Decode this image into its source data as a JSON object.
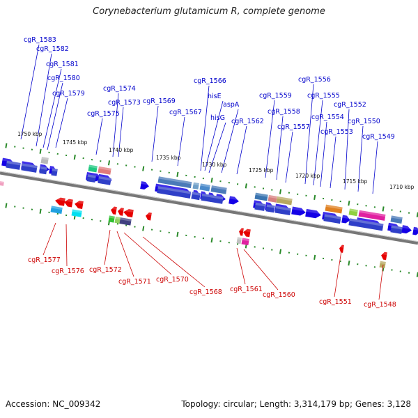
{
  "title": "Corynebacterium glutamicum R, complete genome",
  "footer": {
    "accession": "Accession: NC_009342",
    "summary": "Topology: circular; Length: 3,314,179 bp; Genes: 3,128"
  },
  "colors": {
    "backbone": "#777777",
    "forward_gene": "#1400e6",
    "reverse_gene": "#e60000",
    "forward_label": "#0000cc",
    "reverse_label": "#cc0000",
    "ticks": "#2a8a2a"
  },
  "scale_labels": [
    "1750 kbp",
    "1745 kbp",
    "1740 kbp",
    "1735 kbp",
    "1730 kbp",
    "1725 kbp",
    "1720 kbp",
    "1715 kbp",
    "1710 kbp"
  ],
  "forward_genes": [
    "cgR_1583",
    "cgR_1582",
    "cgR_1581",
    "cgR_1580",
    "cgR_1579",
    "cgR_1575",
    "cgR_1574",
    "cgR_1573",
    "cgR_1569",
    "cgR_1567",
    "cgR_1566",
    "hisE",
    "hisG",
    "aspA",
    "cgR_1562",
    "cgR_1559",
    "cgR_1558",
    "cgR_1557",
    "cgR_1556",
    "cgR_1555",
    "cgR_1554",
    "cgR_1553",
    "cgR_1552",
    "cgR_1550",
    "cgR_1549"
  ],
  "reverse_genes": [
    "cgR_1577",
    "cgR_1576",
    "cgR_1572",
    "cgR_1571",
    "cgR_1570",
    "cgR_1568",
    "cgR_1561",
    "cgR_1560",
    "cgR_1551",
    "cgR_1548"
  ]
}
